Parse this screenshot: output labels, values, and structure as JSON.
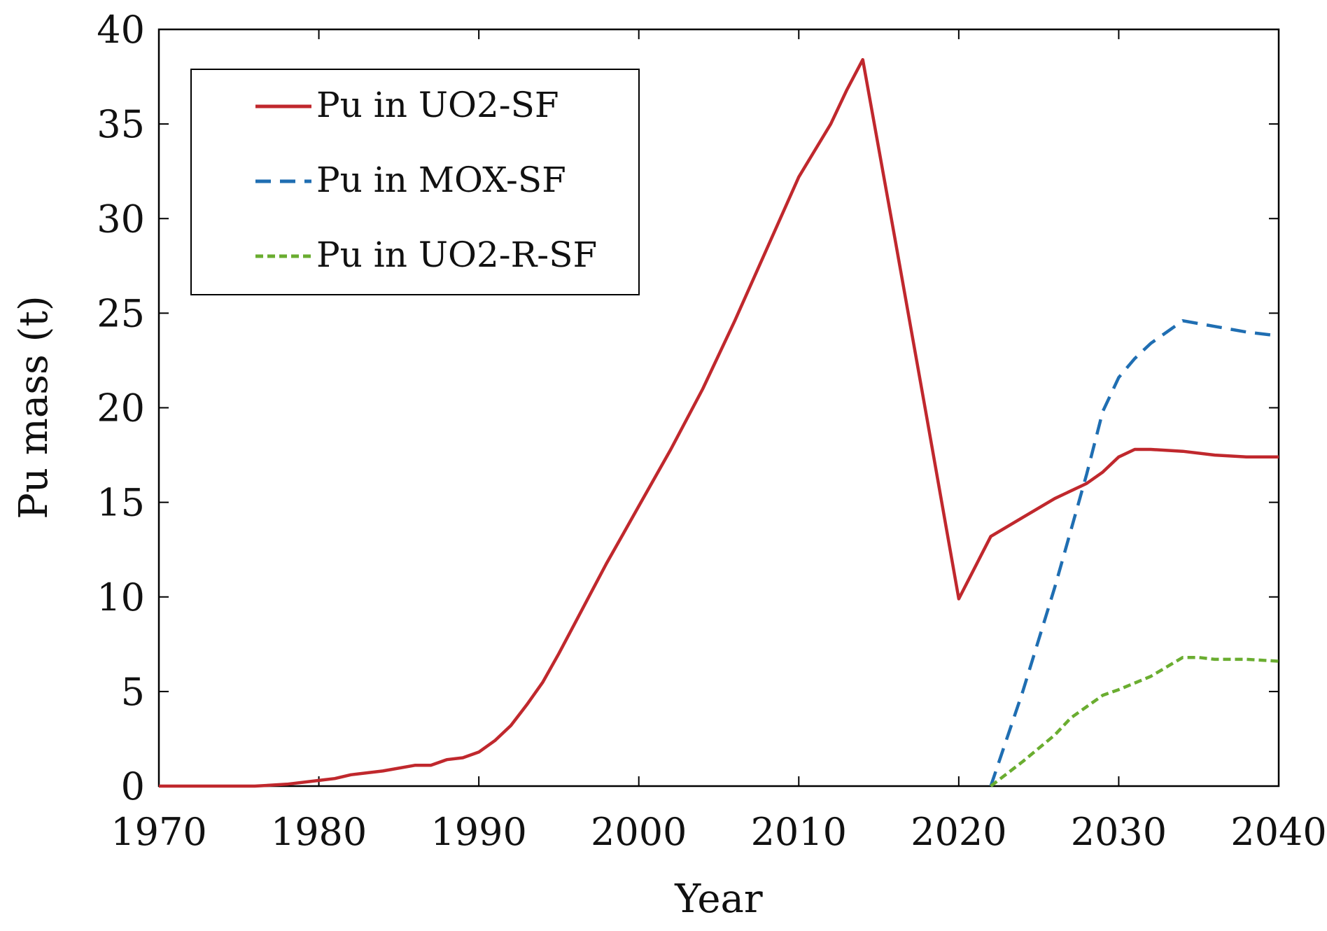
{
  "chart_data": {
    "type": "line",
    "title": "",
    "xlabel": "Year",
    "ylabel": "Pu mass (t)",
    "xlim": [
      1970,
      2040
    ],
    "ylim": [
      0,
      40
    ],
    "xticks": [
      1970,
      1980,
      1990,
      2000,
      2010,
      2020,
      2030,
      2040
    ],
    "yticks": [
      0,
      5,
      10,
      15,
      20,
      25,
      30,
      35,
      40
    ],
    "grid": false,
    "legend_position": "top-left",
    "series": [
      {
        "name": "Pu in UO2-SF",
        "color": "#c0282d",
        "style": "solid",
        "x": [
          1970,
          1976,
          1978,
          1980,
          1981,
          1982,
          1984,
          1986,
          1987,
          1988,
          1989,
          1990,
          1991,
          1992,
          1993,
          1994,
          1995,
          1996,
          1997,
          1998,
          1999,
          2000,
          2002,
          2004,
          2006,
          2008,
          2010,
          2011,
          2012,
          2013,
          2014,
          2016,
          2018,
          2020,
          2022,
          2024,
          2026,
          2028,
          2029,
          2030,
          2031,
          2032,
          2034,
          2036,
          2038,
          2040
        ],
        "y": [
          0,
          0,
          0.1,
          0.3,
          0.4,
          0.6,
          0.8,
          1.1,
          1.1,
          1.4,
          1.5,
          1.8,
          2.4,
          3.2,
          4.3,
          5.5,
          7.0,
          8.6,
          10.2,
          11.8,
          13.3,
          14.8,
          17.8,
          21.0,
          24.6,
          28.4,
          32.2,
          33.6,
          35.0,
          36.8,
          38.4,
          29.0,
          19.5,
          9.9,
          13.2,
          14.2,
          15.2,
          16.0,
          16.6,
          17.4,
          17.8,
          17.8,
          17.7,
          17.5,
          17.4,
          17.4
        ]
      },
      {
        "name": "Pu in MOX-SF",
        "color": "#1f6eb2",
        "style": "dashed",
        "x": [
          2022,
          2024,
          2026,
          2027,
          2028,
          2029,
          2030,
          2031,
          2032,
          2034,
          2036,
          2038,
          2040
        ],
        "y": [
          0,
          5.0,
          10.5,
          13.5,
          16.5,
          19.8,
          21.6,
          22.6,
          23.4,
          24.6,
          24.3,
          24.0,
          23.8
        ]
      },
      {
        "name": "Pu in UO2-R-SF",
        "color": "#6aad30",
        "style": "dotted",
        "x": [
          2022,
          2024,
          2026,
          2027,
          2028,
          2029,
          2030,
          2032,
          2034,
          2035,
          2036,
          2038,
          2040
        ],
        "y": [
          0,
          1.3,
          2.7,
          3.6,
          4.2,
          4.8,
          5.1,
          5.8,
          6.8,
          6.8,
          6.7,
          6.7,
          6.6
        ]
      }
    ]
  }
}
